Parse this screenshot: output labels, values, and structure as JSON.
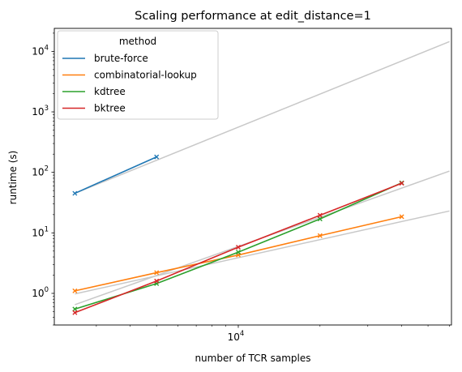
{
  "chart_data": {
    "type": "line",
    "title": "Scaling performance at edit_distance=1",
    "xlabel": "number of TCR samples",
    "ylabel": "runtime (s)",
    "x_scale": "log",
    "y_scale": "log",
    "xlim": [
      2100,
      61000
    ],
    "ylim": [
      0.3,
      24000
    ],
    "x_ticks": [
      {
        "value": 10000,
        "base": "10",
        "exp": "4"
      }
    ],
    "y_ticks": [
      {
        "value": 1,
        "base": "10",
        "exp": "0"
      },
      {
        "value": 10,
        "base": "10",
        "exp": "1"
      },
      {
        "value": 100,
        "base": "10",
        "exp": "2"
      },
      {
        "value": 1000,
        "base": "10",
        "exp": "3"
      },
      {
        "value": 10000,
        "base": "10",
        "exp": "4"
      }
    ],
    "legend": {
      "title": "method",
      "placement": "top-left"
    },
    "series": [
      {
        "name": "brute-force",
        "color": "#1f77b4",
        "x": [
          2500,
          5000
        ],
        "y": [
          45,
          180
        ]
      },
      {
        "name": "combinatorial-lookup",
        "color": "#ff7f0e",
        "x": [
          2500,
          5000,
          10000,
          20000,
          40000
        ],
        "y": [
          1.1,
          2.2,
          4.3,
          9.0,
          18.5
        ]
      },
      {
        "name": "kdtree",
        "color": "#2ca02c",
        "x": [
          2500,
          5000,
          10000,
          20000,
          40000
        ],
        "y": [
          0.55,
          1.45,
          4.8,
          17.0,
          67
        ]
      },
      {
        "name": "bktree",
        "color": "#d62728",
        "x": [
          2500,
          5000,
          10000,
          20000,
          40000
        ],
        "y": [
          0.48,
          1.6,
          5.8,
          19.5,
          66
        ]
      }
    ],
    "fit_lines": [
      {
        "color": "#c8c8c8",
        "x": [
          2500,
          60000
        ],
        "y": [
          45,
          14500
        ]
      },
      {
        "color": "#c8c8c8",
        "x": [
          2500,
          60000
        ],
        "y": [
          0.98,
          23
        ]
      },
      {
        "color": "#c8c8c8",
        "x": [
          2500,
          60000
        ],
        "y": [
          0.65,
          105
        ]
      }
    ]
  }
}
